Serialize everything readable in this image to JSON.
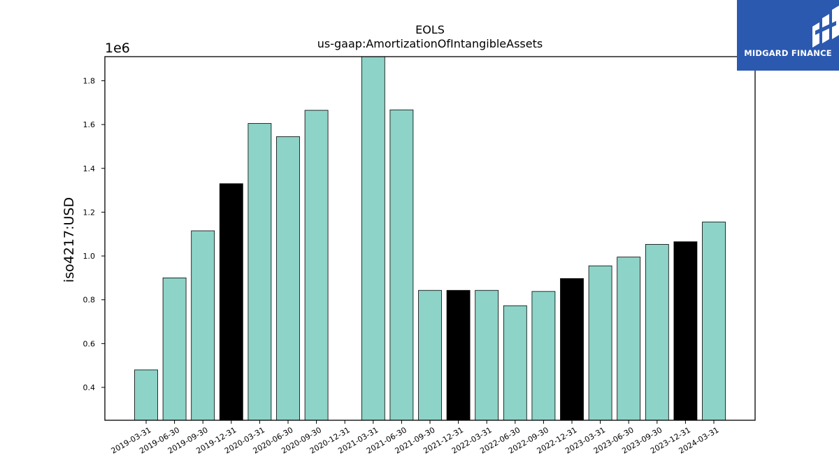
{
  "chart_data": {
    "type": "bar",
    "title": "EOLS",
    "subtitle": "us-gaap:AmortizationOfIntangibleAssets",
    "ylabel": "iso4217:USD",
    "xlabel": "",
    "y_scale_label": "1e6",
    "ylim": [
      250000,
      1910000
    ],
    "yticks": [
      0.4,
      0.6,
      0.8,
      1.0,
      1.2,
      1.4,
      1.6,
      1.8
    ],
    "ytick_labels": [
      "0.4",
      "0.6",
      "0.8",
      "1.0",
      "1.2",
      "1.4",
      "1.6",
      "1.8"
    ],
    "categories": [
      "2019-03-31",
      "2019-06-30",
      "2019-09-30",
      "2019-12-31",
      "2020-03-31",
      "2020-06-30",
      "2020-09-30",
      "2020-12-31",
      "2021-03-31",
      "2021-06-30",
      "2021-09-30",
      "2021-12-31",
      "2022-03-31",
      "2022-06-30",
      "2022-09-30",
      "2022-12-31",
      "2023-03-31",
      "2023-06-30",
      "2023-09-30",
      "2023-12-31",
      "2024-03-31"
    ],
    "values": [
      480000,
      900000,
      1115000,
      1330000,
      1605000,
      1545000,
      1665000,
      null,
      1910000,
      1667000,
      843000,
      843000,
      843000,
      773000,
      838000,
      897000,
      955000,
      995000,
      1053000,
      1065000,
      1155000
    ],
    "bar_colors": [
      "#8dd3c7",
      "#8dd3c7",
      "#8dd3c7",
      "#000000",
      "#8dd3c7",
      "#8dd3c7",
      "#8dd3c7",
      "#8dd3c7",
      "#8dd3c7",
      "#8dd3c7",
      "#8dd3c7",
      "#000000",
      "#8dd3c7",
      "#8dd3c7",
      "#8dd3c7",
      "#000000",
      "#8dd3c7",
      "#8dd3c7",
      "#8dd3c7",
      "#000000",
      "#8dd3c7"
    ],
    "grid": false,
    "legend": "none"
  },
  "logo": {
    "text": "MIDGARD FINANCE",
    "background": "#2b59b0"
  }
}
